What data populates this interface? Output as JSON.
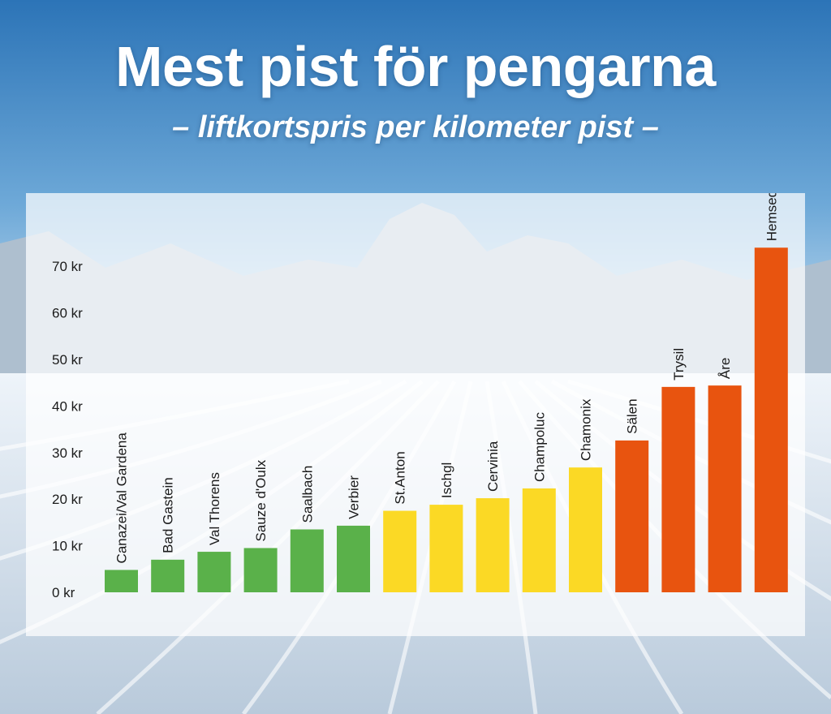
{
  "title": "Mest pist för pengarna",
  "subtitle": "– liftkortspris per kilometer pist –",
  "chart_data": {
    "type": "bar",
    "categories": [
      "Canazei/Val Gardena",
      "Bad Gastein",
      "Val Thorens",
      "Sauze d'Oulx",
      "Saalbach",
      "Verbier",
      "St.Anton",
      "Ischgl",
      "Cervinia",
      "Champoluc",
      "Chamonix",
      "Sälen",
      "Trysil",
      "Åre",
      "Hemsedal"
    ],
    "values": [
      4.8,
      7,
      8.7,
      9.5,
      13.5,
      14.3,
      17.5,
      18.8,
      20.2,
      22.3,
      26.8,
      32.6,
      44.1,
      44.4,
      74
    ],
    "bar_colors": [
      "#5ab14a",
      "#5ab14a",
      "#5ab14a",
      "#5ab14a",
      "#5ab14a",
      "#5ab14a",
      "#fbd925",
      "#fbd925",
      "#fbd925",
      "#fbd925",
      "#fbd925",
      "#e8540f",
      "#e8540f",
      "#e8540f",
      "#e8540f"
    ],
    "yticks": [
      "0 kr",
      "10 kr",
      "20 kr",
      "30 kr",
      "40 kr",
      "50 kr",
      "60 kr",
      "70 kr"
    ],
    "ylim": [
      0,
      75
    ],
    "grid": false,
    "legend": "none"
  }
}
